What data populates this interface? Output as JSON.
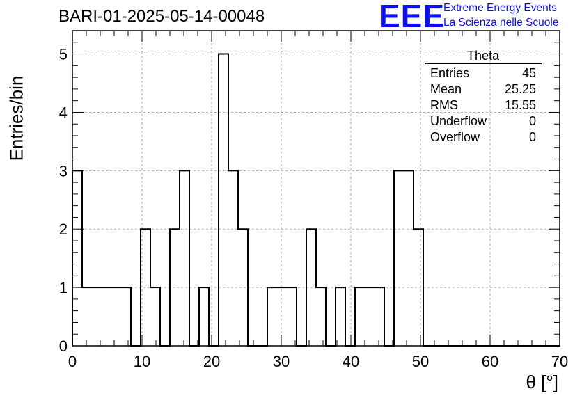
{
  "header": {
    "title": "BARI-01-2025-05-14-00048",
    "logo": "EEE",
    "logo_line1": "Extreme Energy Events",
    "logo_line2": "La Scienza nelle Scuole"
  },
  "stats": {
    "title": "Theta",
    "rows": [
      {
        "label": "Entries",
        "value": "45"
      },
      {
        "label": "Mean",
        "value": "25.25"
      },
      {
        "label": "RMS",
        "value": "15.55"
      },
      {
        "label": "Underflow",
        "value": "0"
      },
      {
        "label": "Overflow",
        "value": "0"
      }
    ]
  },
  "chart_data": {
    "type": "histogram",
    "title": "BARI-01-2025-05-14-00048",
    "xlabel": "θ [°]",
    "ylabel": "Entries/bin",
    "xlim": [
      0,
      70
    ],
    "ylim": [
      0,
      5.4
    ],
    "grid": true,
    "bin_width": 1.4,
    "bin_edges_start": 0,
    "values": [
      3,
      1,
      1,
      1,
      1,
      1,
      0,
      2,
      1,
      0,
      2,
      3,
      0,
      1,
      0,
      5,
      3,
      2,
      0,
      0,
      1,
      1,
      1,
      0,
      2,
      1,
      0,
      1,
      0,
      1,
      1,
      1,
      0,
      3,
      3,
      2,
      0,
      0,
      0,
      0,
      0,
      0,
      0,
      0,
      0,
      0,
      0,
      0,
      0,
      0
    ],
    "xticks": [
      0,
      10,
      20,
      30,
      40,
      50,
      60,
      70
    ],
    "yticks": [
      0,
      1,
      2,
      3,
      4,
      5
    ]
  }
}
